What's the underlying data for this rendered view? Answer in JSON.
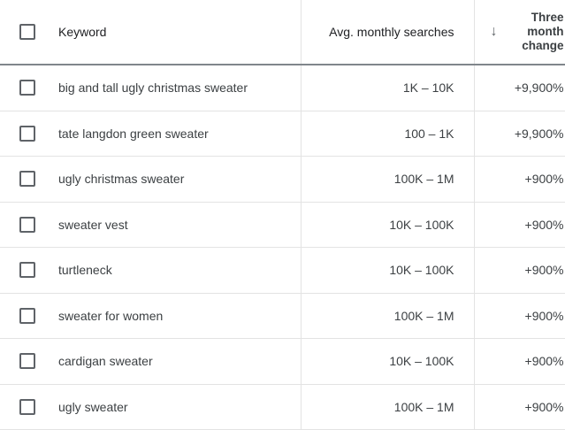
{
  "header": {
    "keyword": "Keyword",
    "avg_monthly_searches": "Avg. monthly searches",
    "three_month_change": [
      "Three",
      "month",
      "change"
    ],
    "sort_icon": "arrow-down-icon"
  },
  "rows": [
    {
      "keyword": "big and tall ugly christmas sweater",
      "searches": "1K – 10K",
      "change": "+9,900%"
    },
    {
      "keyword": "tate langdon green sweater",
      "searches": "100 – 1K",
      "change": "+9,900%"
    },
    {
      "keyword": "ugly christmas sweater",
      "searches": "100K – 1M",
      "change": "+900%"
    },
    {
      "keyword": "sweater vest",
      "searches": "10K – 100K",
      "change": "+900%"
    },
    {
      "keyword": "turtleneck",
      "searches": "10K – 100K",
      "change": "+900%"
    },
    {
      "keyword": "sweater for women",
      "searches": "100K – 1M",
      "change": "+900%"
    },
    {
      "keyword": "cardigan sweater",
      "searches": "10K – 100K",
      "change": "+900%"
    },
    {
      "keyword": "ugly sweater",
      "searches": "100K – 1M",
      "change": "+900%"
    }
  ]
}
